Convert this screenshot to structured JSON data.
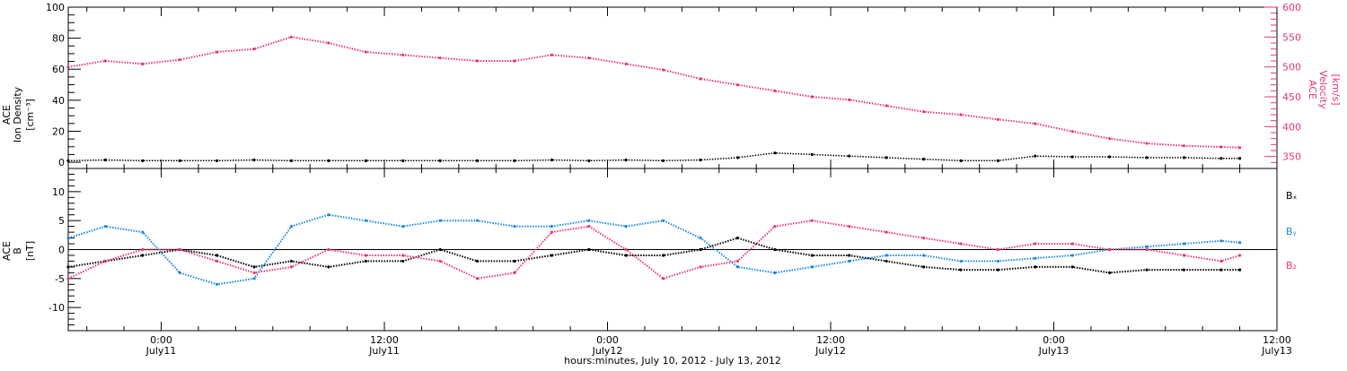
{
  "colors": {
    "axis": "#000000",
    "density": "#000000",
    "velocity": "#e8386b",
    "bx": "#000000",
    "by": "#1a86e3",
    "bz": "#e8386b"
  },
  "chart_data": [
    {
      "type": "scatter",
      "panel": "top",
      "x_unit": "hours since 2012-07-10 00:00 UT",
      "xlim": [
        19,
        84
      ],
      "left_axis": {
        "label_lines": [
          "ACE",
          "Ion Density",
          "[cm⁻³]"
        ],
        "ylim": [
          -4,
          100
        ],
        "ticks": [
          0,
          20,
          40,
          60,
          80,
          100
        ]
      },
      "right_axis": {
        "label_lines": [
          "ACE",
          "Velocity",
          "[km/s]"
        ],
        "ylim": [
          330,
          600
        ],
        "ticks": [
          350,
          400,
          450,
          500,
          550,
          600
        ]
      },
      "series": [
        {
          "key": "density",
          "axis": "left",
          "x": [
            19,
            21,
            23,
            25,
            27,
            29,
            31,
            33,
            35,
            37,
            39,
            41,
            43,
            45,
            47,
            49,
            51,
            53,
            55,
            57,
            59,
            61,
            63,
            65,
            67,
            69,
            71,
            73,
            75,
            77,
            79,
            81,
            82
          ],
          "y": [
            1,
            1.5,
            1,
            1,
            1,
            1.5,
            1,
            1,
            1,
            1,
            1,
            1,
            1,
            1.5,
            1,
            1.5,
            1,
            1.5,
            3,
            6,
            5,
            4,
            3,
            2,
            1,
            1,
            4,
            3.5,
            3.5,
            3,
            3,
            2.5,
            2.5
          ]
        },
        {
          "key": "velocity",
          "axis": "right",
          "x": [
            19,
            21,
            23,
            25,
            27,
            29,
            31,
            33,
            35,
            37,
            39,
            41,
            43,
            45,
            47,
            49,
            51,
            53,
            55,
            57,
            59,
            61,
            63,
            65,
            67,
            69,
            71,
            73,
            75,
            77,
            79,
            81,
            82
          ],
          "y": [
            500,
            510,
            505,
            512,
            525,
            530,
            550,
            540,
            525,
            520,
            515,
            510,
            510,
            520,
            515,
            505,
            495,
            480,
            470,
            460,
            450,
            445,
            435,
            425,
            420,
            412,
            405,
            392,
            380,
            372,
            368,
            366,
            365
          ]
        }
      ]
    },
    {
      "type": "scatter",
      "panel": "bottom",
      "x_unit": "hours since 2012-07-10 00:00 UT",
      "xlim": [
        19,
        84
      ],
      "ylim": [
        -14,
        14
      ],
      "yticks": [
        -10,
        -5,
        0,
        5,
        10
      ],
      "ylabel_lines": [
        "ACE",
        "B",
        "[nT]"
      ],
      "xtick_times": [
        "0:00",
        "12:00",
        "0:00",
        "12:00",
        "0:00",
        "12:00"
      ],
      "xtick_dates": [
        "July11",
        "July11",
        "July12",
        "July12",
        "July13",
        "July13"
      ],
      "xtick_hours": [
        24,
        36,
        48,
        60,
        72,
        84
      ],
      "xlabel": "hours:minutes, July 10, 2012 - July 13, 2012",
      "legend": [
        "Bₓ",
        "Bᵧ",
        "B₂"
      ],
      "series": [
        {
          "key": "bx",
          "x": [
            19,
            21,
            23,
            25,
            27,
            29,
            31,
            33,
            35,
            37,
            39,
            41,
            43,
            45,
            47,
            49,
            51,
            53,
            55,
            57,
            59,
            61,
            63,
            65,
            67,
            69,
            71,
            73,
            75,
            77,
            79,
            81,
            82
          ],
          "y": [
            -3,
            -2,
            -1,
            0,
            -1,
            -3,
            -2,
            -3,
            -2,
            -2,
            0,
            -2,
            -2,
            -1,
            0,
            -1,
            -1,
            0,
            2,
            0,
            -1,
            -1,
            -2,
            -3,
            -3.5,
            -3.5,
            -3,
            -3,
            -4,
            -3.5,
            -3.5,
            -3.5,
            -3.5
          ]
        },
        {
          "key": "by",
          "x": [
            19,
            21,
            23,
            25,
            27,
            29,
            31,
            33,
            35,
            37,
            39,
            41,
            43,
            45,
            47,
            49,
            51,
            53,
            55,
            57,
            59,
            61,
            63,
            65,
            67,
            69,
            71,
            73,
            75,
            77,
            79,
            81,
            82
          ],
          "y": [
            2,
            4,
            3,
            -4,
            -6,
            -5,
            4,
            6,
            5,
            4,
            5,
            5,
            4,
            4,
            5,
            4,
            5,
            2,
            -3,
            -4,
            -3,
            -2,
            -1,
            -1,
            -2,
            -2,
            -1.5,
            -1,
            0,
            0.5,
            1,
            1.5,
            1.2
          ]
        },
        {
          "key": "bz",
          "x": [
            19,
            21,
            23,
            25,
            27,
            29,
            31,
            33,
            35,
            37,
            39,
            41,
            43,
            45,
            47,
            49,
            51,
            53,
            55,
            57,
            59,
            61,
            63,
            65,
            67,
            69,
            71,
            73,
            75,
            77,
            79,
            81,
            82
          ],
          "y": [
            -5,
            -2,
            0,
            0,
            -2,
            -4,
            -3,
            0,
            -1,
            -1,
            -2,
            -5,
            -4,
            3,
            4,
            0,
            -5,
            -3,
            -2,
            4,
            5,
            4,
            3,
            2,
            1,
            0,
            1,
            1,
            0,
            0,
            -1,
            -2,
            -1
          ]
        }
      ]
    }
  ]
}
